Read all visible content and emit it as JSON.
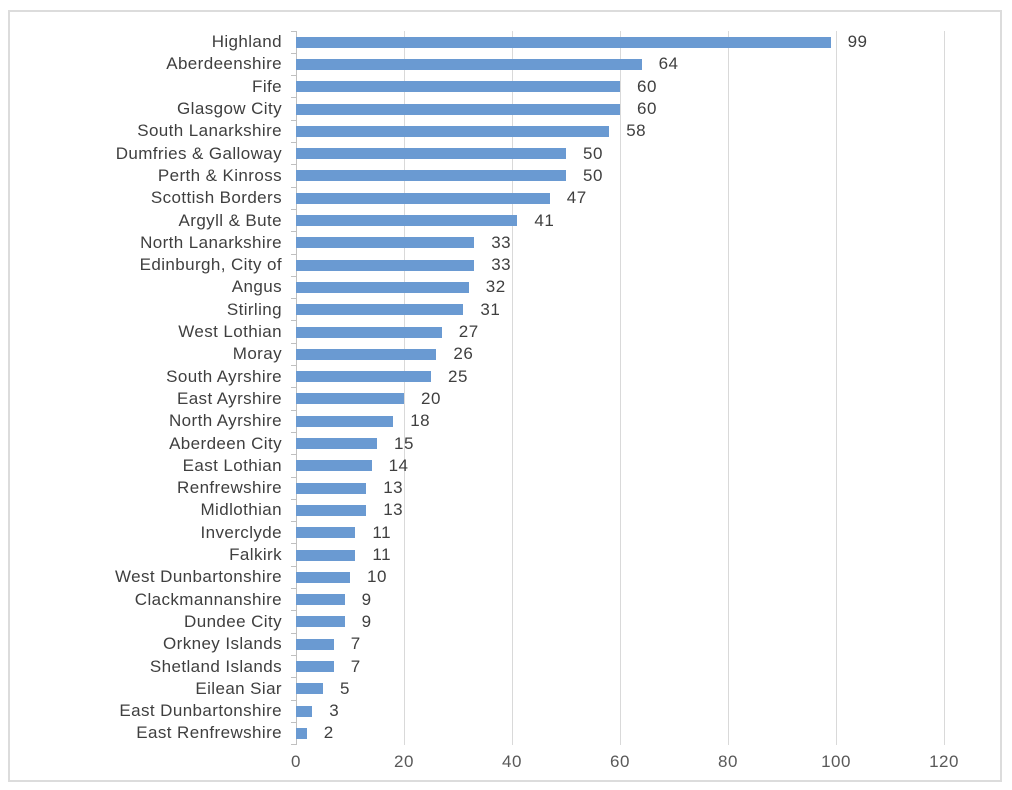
{
  "chart_data": {
    "type": "bar",
    "orientation": "horizontal",
    "title": "",
    "xlabel": "",
    "ylabel": "",
    "categories": [
      "Highland",
      "Aberdeenshire",
      "Fife",
      "Glasgow City",
      "South Lanarkshire",
      "Dumfries & Galloway",
      "Perth & Kinross",
      "Scottish Borders",
      "Argyll & Bute",
      "North Lanarkshire",
      "Edinburgh, City of",
      "Angus",
      "Stirling",
      "West Lothian",
      "Moray",
      "South Ayrshire",
      "East Ayrshire",
      "North Ayrshire",
      "Aberdeen City",
      "East Lothian",
      "Renfrewshire",
      "Midlothian",
      "Inverclyde",
      "Falkirk",
      "West Dunbartonshire",
      "Clackmannanshire",
      "Dundee City",
      "Orkney Islands",
      "Shetland Islands",
      "Eilean Siar",
      "East Dunbartonshire",
      "East Renfrewshire"
    ],
    "values": [
      99,
      64,
      60,
      60,
      58,
      50,
      50,
      47,
      41,
      33,
      33,
      32,
      31,
      27,
      26,
      25,
      20,
      18,
      15,
      14,
      13,
      13,
      11,
      11,
      10,
      9,
      9,
      7,
      7,
      5,
      3,
      2
    ],
    "xticks": [
      0,
      20,
      40,
      60,
      80,
      100,
      120
    ],
    "xlim": [
      0,
      120
    ],
    "grid": true,
    "legend": false,
    "data_labels": true
  },
  "colors": {
    "bar": "#6A9AD2",
    "category_text": "#3F3F3F",
    "value_text": "#3F3F3F",
    "axis_tick_text": "#595959",
    "gridline": "#D9D9D9",
    "axis_line": "#C0C0C0",
    "frame_border": "#DCDCDC",
    "background": "#FFFFFF"
  }
}
